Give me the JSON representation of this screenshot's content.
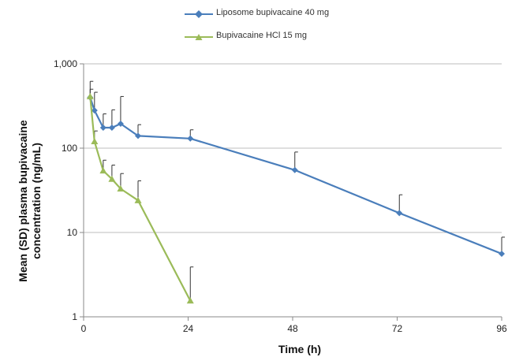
{
  "chart_data": {
    "type": "line",
    "xlabel": "Time (h)",
    "ylabel_line1": "Mean (SD) plasma bupivacaine",
    "ylabel_line2": "concentration (ng/mL)",
    "xlim": [
      0,
      96
    ],
    "ylim": [
      1,
      1000
    ],
    "yscale": "log",
    "grid": "horizontal",
    "legend_position": "top",
    "x_ticks": [
      0,
      24,
      48,
      72,
      96
    ],
    "x_tick_labels": [
      "0",
      "24",
      "48",
      "72",
      "96"
    ],
    "y_ticks": [
      1,
      10,
      100,
      1000
    ],
    "y_tick_labels": [
      "1",
      "10",
      "100",
      "1,000"
    ],
    "series": [
      {
        "name": "Liposome bupivacaine 40 mg",
        "color": "#4A7EBB",
        "marker": "diamond",
        "x": [
          1.5,
          2.5,
          4.5,
          6.5,
          8.5,
          12.5,
          24.5,
          48.5,
          72.5,
          96
        ],
        "y": [
          400,
          280,
          175,
          175,
          195,
          140,
          130,
          55,
          17,
          5.6
        ],
        "error_upper": [
          620,
          460,
          255,
          285,
          410,
          190,
          165,
          90,
          28,
          8.8
        ]
      },
      {
        "name": "Bupivacaine HCl 15 mg",
        "color": "#9BBB59",
        "marker": "triangle",
        "x": [
          1.5,
          2.5,
          4.5,
          6.5,
          8.5,
          12.5,
          24.5
        ],
        "y": [
          410,
          120,
          54,
          43,
          33,
          24,
          1.55
        ],
        "error_upper": [
          500,
          160,
          72,
          63,
          50,
          41,
          3.9
        ]
      }
    ]
  }
}
